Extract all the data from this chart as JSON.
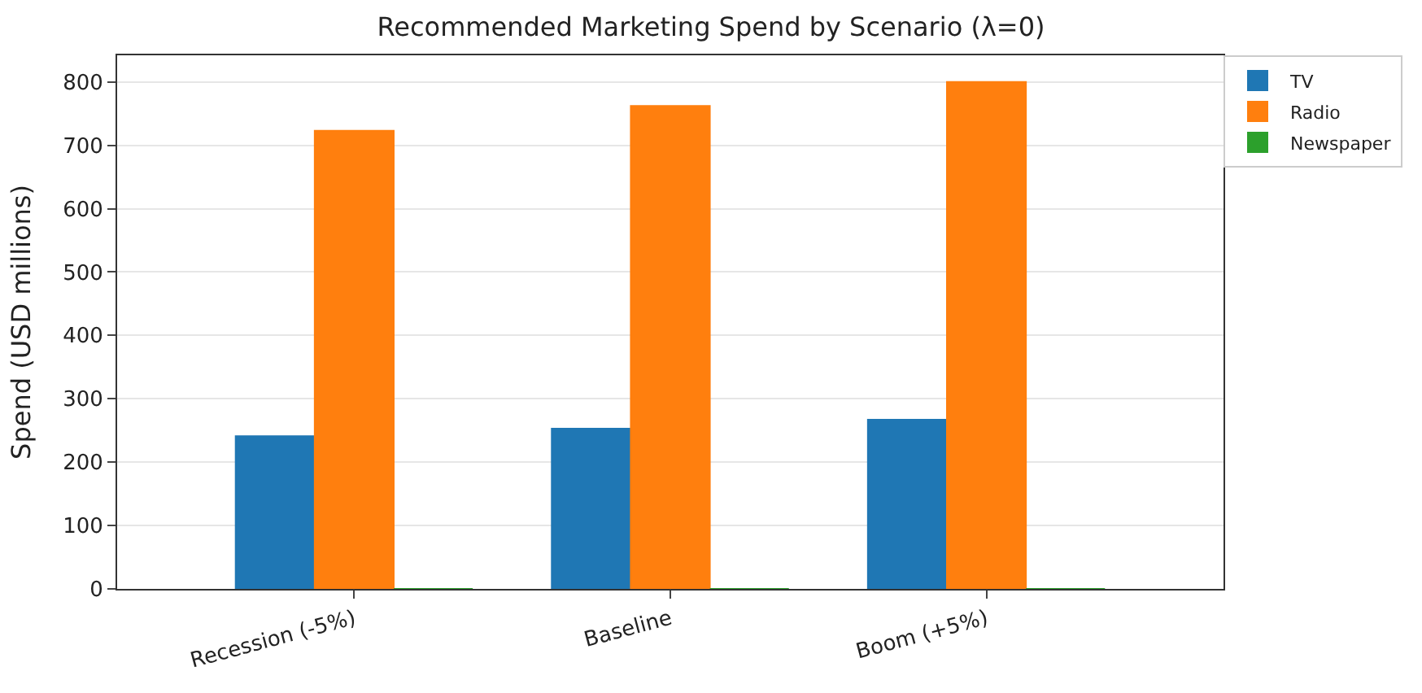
{
  "chart_data": {
    "type": "bar",
    "title": "Recommended Marketing Spend by Scenario (λ=0)",
    "ylabel": "Spend (USD millions)",
    "categories": [
      "Recession (-5%)",
      "Baseline",
      "Boom (+5%)"
    ],
    "series": [
      {
        "name": "TV",
        "color": "#1f77b4",
        "values": [
          241,
          253,
          267
        ]
      },
      {
        "name": "Radio",
        "color": "#ff7f0e",
        "values": [
          723,
          762,
          800
        ]
      },
      {
        "name": "Newspaper",
        "color": "#2ca02c",
        "values": [
          0,
          0,
          0
        ]
      }
    ],
    "ylim": [
      0,
      842
    ],
    "yticks": [
      0,
      100,
      200,
      300,
      400,
      500,
      600,
      700,
      800
    ],
    "grid": "y",
    "legend": "top right"
  }
}
